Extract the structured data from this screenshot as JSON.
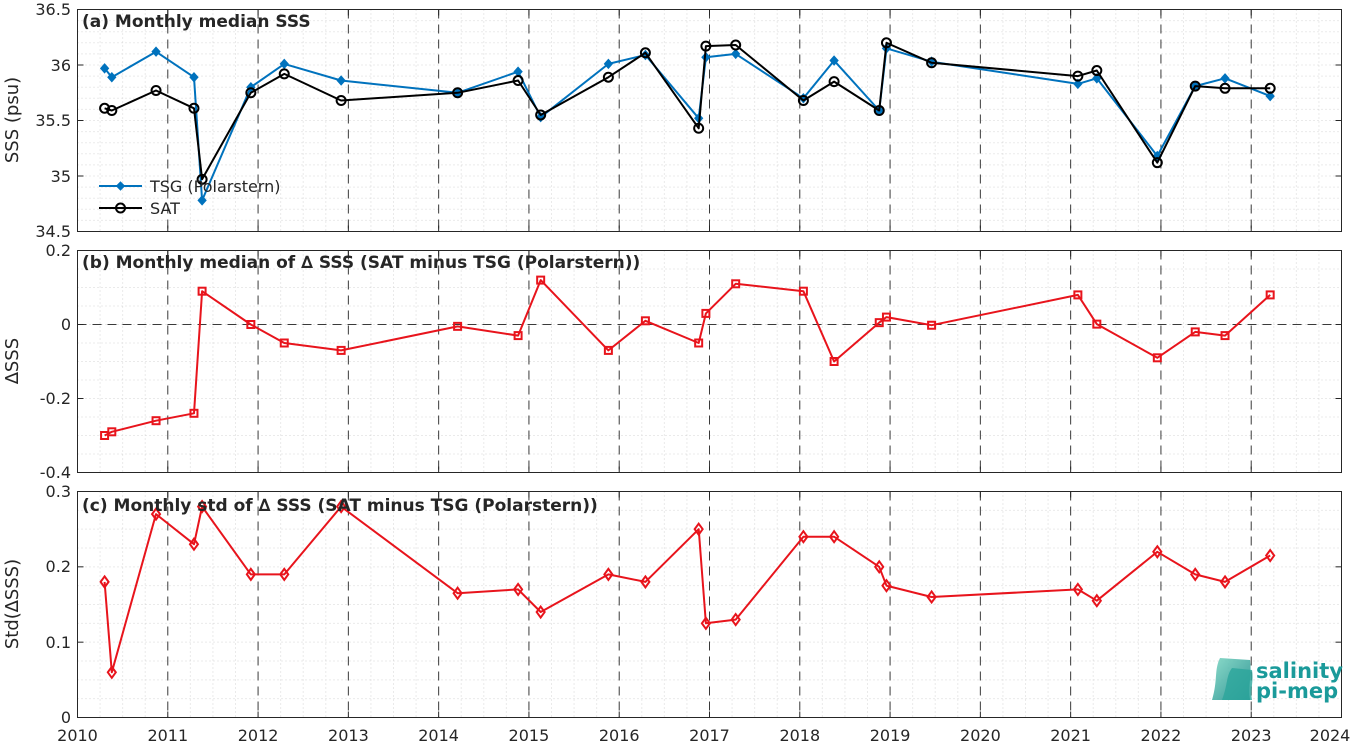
{
  "colors": {
    "tsg": "#0072BD",
    "sat": "#000000",
    "delta": "#E8141C",
    "logo": "#1a9a9a"
  },
  "x_ticks": [
    "2010",
    "2011",
    "2012",
    "2013",
    "2014",
    "2015",
    "2016",
    "2017",
    "2018",
    "2019",
    "2020",
    "2021",
    "2022",
    "2023",
    "2024"
  ],
  "panels": {
    "a": {
      "title": "(a) Monthly median SSS",
      "ylabel": "SSS (psu)",
      "ytick_labels": [
        "34.5",
        "35",
        "35.5",
        "36",
        "36.5"
      ]
    },
    "b": {
      "title": "(b) Monthly median of ∆ SSS (SAT minus TSG (Polarstern))",
      "ylabel": "∆SSS",
      "ytick_labels": [
        "-0.4",
        "-0.2",
        "0",
        "0.2"
      ]
    },
    "c": {
      "title": "(c) Monthly std of ∆ SSS (SAT minus TSG (Polarstern))",
      "ylabel": "Std(∆SSS)",
      "ytick_labels": [
        "0",
        "0.1",
        "0.2",
        "0.3"
      ]
    }
  },
  "legend": {
    "tsg_label": "TSG (Polarstern)",
    "sat_label": "SAT"
  },
  "logo": {
    "line1": "salinity",
    "line2": "pi-mep"
  },
  "chart_data": [
    {
      "type": "line",
      "title": "(a) Monthly median SSS",
      "ylabel": "SSS (psu)",
      "xlim": [
        2010,
        2024
      ],
      "ylim": [
        34.5,
        36.5
      ],
      "x_ticks": [
        2010,
        2011,
        2012,
        2013,
        2014,
        2015,
        2016,
        2017,
        2018,
        2019,
        2020,
        2021,
        2022,
        2023,
        2024
      ],
      "y_ticks": [
        34.5,
        35,
        35.5,
        36,
        36.5
      ],
      "grid": "dotted minor + dashed yearly",
      "legend_position": "left",
      "series": [
        {
          "name": "TSG (Polarstern)",
          "marker": "filled-diamond",
          "x": [
            2010.3,
            2010.38,
            2010.87,
            2011.29,
            2011.38,
            2011.92,
            2012.29,
            2012.92,
            2014.21,
            2014.88,
            2015.13,
            2015.88,
            2016.29,
            2016.88,
            2016.96,
            2017.29,
            2018.04,
            2018.38,
            2018.88,
            2018.96,
            2019.46,
            2021.08,
            2021.29,
            2021.96,
            2022.38,
            2022.71,
            2023.21
          ],
          "y": [
            35.97,
            35.89,
            36.12,
            35.89,
            34.78,
            35.8,
            36.01,
            35.86,
            35.75,
            35.94,
            35.53,
            36.01,
            36.09,
            35.52,
            36.07,
            36.1,
            35.7,
            36.04,
            35.59,
            36.15,
            36.03,
            35.83,
            35.88,
            35.18,
            35.81,
            35.88,
            35.72
          ]
        },
        {
          "name": "SAT",
          "marker": "open-circle",
          "x": [
            2010.3,
            2010.38,
            2010.87,
            2011.29,
            2011.38,
            2011.92,
            2012.29,
            2012.92,
            2014.21,
            2014.88,
            2015.13,
            2015.88,
            2016.29,
            2016.88,
            2016.96,
            2017.29,
            2018.04,
            2018.38,
            2018.88,
            2018.96,
            2019.46,
            2021.08,
            2021.29,
            2021.96,
            2022.38,
            2022.71,
            2023.21
          ],
          "y": [
            35.61,
            35.59,
            35.77,
            35.61,
            34.97,
            35.75,
            35.92,
            35.68,
            35.75,
            35.86,
            35.55,
            35.89,
            36.11,
            35.43,
            36.17,
            36.18,
            35.68,
            35.85,
            35.59,
            36.2,
            36.02,
            35.9,
            35.95,
            35.12,
            35.81,
            35.79,
            35.79
          ]
        }
      ]
    },
    {
      "type": "line",
      "title": "(b) Monthly median of ∆ SSS (SAT minus TSG (Polarstern))",
      "ylabel": "∆SSS",
      "xlim": [
        2010,
        2024
      ],
      "ylim": [
        -0.4,
        0.2
      ],
      "y_ticks": [
        -0.4,
        -0.2,
        0,
        0.2
      ],
      "reference_line": 0,
      "series": [
        {
          "name": "",
          "marker": "open-square",
          "x": [
            2010.3,
            2010.38,
            2010.87,
            2011.29,
            2011.38,
            2011.92,
            2012.29,
            2012.92,
            2014.21,
            2014.88,
            2015.13,
            2015.88,
            2016.29,
            2016.88,
            2016.96,
            2017.29,
            2018.04,
            2018.38,
            2018.88,
            2018.96,
            2019.46,
            2021.08,
            2021.29,
            2021.96,
            2022.38,
            2022.71,
            2023.21
          ],
          "y": [
            -0.3,
            -0.29,
            -0.26,
            -0.24,
            0.09,
            0.0,
            -0.05,
            -0.07,
            -0.005,
            -0.03,
            0.12,
            -0.07,
            0.01,
            -0.05,
            0.03,
            0.11,
            0.09,
            -0.1,
            0.005,
            0.02,
            -0.002,
            0.08,
            0.001,
            -0.09,
            -0.02,
            -0.03,
            0.08
          ]
        }
      ]
    },
    {
      "type": "line",
      "title": "(c) Monthly std of ∆ SSS (SAT minus TSG (Polarstern))",
      "ylabel": "Std(∆SSS)",
      "xlim": [
        2010,
        2024
      ],
      "ylim": [
        0,
        0.3
      ],
      "y_ticks": [
        0,
        0.1,
        0.2,
        0.3
      ],
      "series": [
        {
          "name": "",
          "marker": "open-diamond",
          "x": [
            2010.3,
            2010.38,
            2010.87,
            2011.29,
            2011.38,
            2011.92,
            2012.29,
            2012.92,
            2014.21,
            2014.88,
            2015.13,
            2015.88,
            2016.29,
            2016.88,
            2016.96,
            2017.29,
            2018.04,
            2018.38,
            2018.88,
            2018.96,
            2019.46,
            2021.08,
            2021.29,
            2021.96,
            2022.38,
            2022.71,
            2023.21
          ],
          "y": [
            0.18,
            0.06,
            0.27,
            0.23,
            0.28,
            0.19,
            0.19,
            0.28,
            0.165,
            0.17,
            0.14,
            0.19,
            0.18,
            0.25,
            0.125,
            0.13,
            0.24,
            0.24,
            0.2,
            0.175,
            0.16,
            0.17,
            0.155,
            0.22,
            0.19,
            0.18,
            0.215
          ]
        }
      ]
    }
  ]
}
